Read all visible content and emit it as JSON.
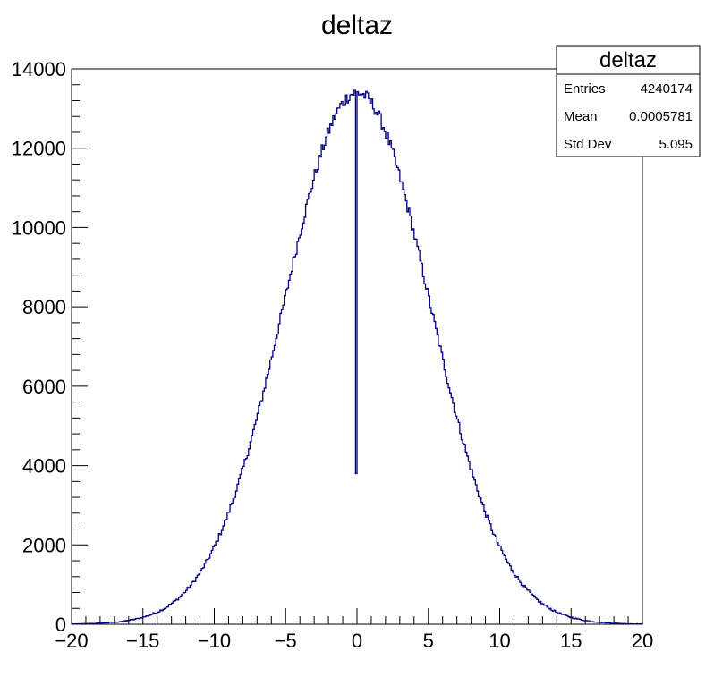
{
  "chart_data": {
    "type": "bar",
    "title": "deltaz",
    "histogram": true,
    "xlim": [
      -20,
      20
    ],
    "ylim": [
      0,
      14000
    ],
    "xticks": [
      -20,
      -15,
      -10,
      -5,
      0,
      5,
      10,
      15,
      20
    ],
    "xtick_labels": [
      "−20",
      "−15",
      "−10",
      "−5",
      "0",
      "5",
      "10",
      "15",
      "20"
    ],
    "yticks": [
      0,
      2000,
      4000,
      6000,
      8000,
      10000,
      12000,
      14000
    ],
    "ytick_labels": [
      "0",
      "2000",
      "4000",
      "6000",
      "8000",
      "10000",
      "12000",
      "14000"
    ],
    "series": [
      {
        "color": "#000080",
        "bin_width": 0.1,
        "peak": 13400,
        "mean": 0.0005781,
        "std_dev": 5.095,
        "spike_bin": {
          "x": 0,
          "value": 3800
        }
      }
    ],
    "grid": false,
    "stats_box": {
      "title": "deltaz",
      "rows": [
        {
          "label": "Entries",
          "value": "4240174"
        },
        {
          "label": "Mean",
          "value": "0.0005781"
        },
        {
          "label": "Std Dev",
          "value": "5.095"
        }
      ]
    }
  }
}
